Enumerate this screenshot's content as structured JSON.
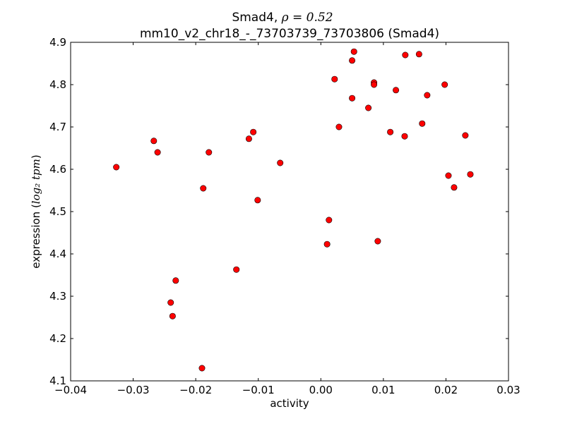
{
  "chart_data": {
    "type": "scatter",
    "title_line1": "Smad4, ",
    "title_rho": "ρ = 0.52",
    "title_line2": "mm10_v2_chr18_-_73703739_73703806 (Smad4)",
    "xlabel": "activity",
    "ylabel_prefix": "expression (",
    "ylabel_math": "log₂ tpm",
    "ylabel_suffix": ")",
    "xlim": [
      -0.04,
      0.03
    ],
    "ylim": [
      4.1,
      4.9
    ],
    "xticks": [
      "−0.04",
      "−0.03",
      "−0.02",
      "−0.01",
      "0.00",
      "0.01",
      "0.02",
      "0.03"
    ],
    "xtick_values": [
      -0.04,
      -0.03,
      -0.02,
      -0.01,
      0.0,
      0.01,
      0.02,
      0.03
    ],
    "yticks": [
      "4.1",
      "4.2",
      "4.3",
      "4.4",
      "4.5",
      "4.6",
      "4.7",
      "4.8",
      "4.9"
    ],
    "ytick_values": [
      4.1,
      4.2,
      4.3,
      4.4,
      4.5,
      4.6,
      4.7,
      4.8,
      4.9
    ],
    "marker_color": "#ff0000",
    "points": [
      [
        -0.0327,
        4.605
      ],
      [
        -0.0267,
        4.667
      ],
      [
        -0.0261,
        4.64
      ],
      [
        -0.0179,
        4.64
      ],
      [
        -0.0188,
        4.555
      ],
      [
        -0.024,
        4.285
      ],
      [
        -0.0232,
        4.337
      ],
      [
        -0.0237,
        4.253
      ],
      [
        -0.019,
        4.13
      ],
      [
        -0.0135,
        4.363
      ],
      [
        -0.0115,
        4.672
      ],
      [
        -0.0108,
        4.688
      ],
      [
        -0.0101,
        4.527
      ],
      [
        -0.0065,
        4.615
      ],
      [
        0.001,
        4.423
      ],
      [
        0.0013,
        4.48
      ],
      [
        0.0022,
        4.813
      ],
      [
        0.0029,
        4.7
      ],
      [
        0.005,
        4.857
      ],
      [
        0.0053,
        4.878
      ],
      [
        0.005,
        4.768
      ],
      [
        0.0076,
        4.745
      ],
      [
        0.0085,
        4.805
      ],
      [
        0.0085,
        4.8
      ],
      [
        0.0091,
        4.43
      ],
      [
        0.0111,
        4.688
      ],
      [
        0.012,
        4.787
      ],
      [
        0.0134,
        4.678
      ],
      [
        0.0135,
        4.87
      ],
      [
        0.0157,
        4.872
      ],
      [
        0.0162,
        4.708
      ],
      [
        0.017,
        4.775
      ],
      [
        0.0198,
        4.8
      ],
      [
        0.0204,
        4.585
      ],
      [
        0.0213,
        4.557
      ],
      [
        0.0231,
        4.68
      ],
      [
        0.0239,
        4.588
      ]
    ]
  }
}
